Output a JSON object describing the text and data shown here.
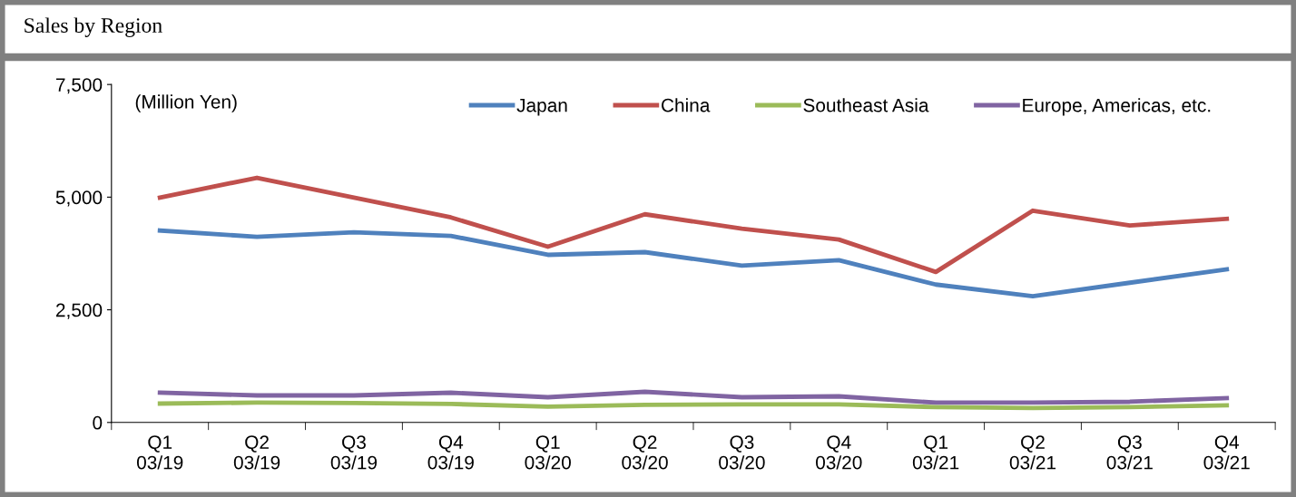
{
  "chart_data": {
    "type": "line",
    "title": "Sales by Region",
    "annotations": [
      "(Million Yen)"
    ],
    "categories": [
      "Q1\n03/19",
      "Q2\n03/19",
      "Q3\n03/19",
      "Q4\n03/19",
      "Q1\n03/20",
      "Q2\n03/20",
      "Q3\n03/20",
      "Q4\n03/20",
      "Q1\n03/21",
      "Q2\n03/21",
      "Q3\n03/21",
      "Q4\n03/21"
    ],
    "series": [
      {
        "name": "Japan",
        "color": "#4f81bd",
        "values": [
          4260,
          4120,
          4220,
          4140,
          3720,
          3780,
          3480,
          3600,
          3060,
          2800,
          3100,
          3400
        ]
      },
      {
        "name": "China",
        "color": "#c0504d",
        "values": [
          4990,
          5430,
          4990,
          4550,
          3900,
          4620,
          4300,
          4060,
          3340,
          4700,
          4370,
          4520
        ]
      },
      {
        "name": "Southeast Asia",
        "color": "#9bbb59",
        "values": [
          420,
          440,
          430,
          410,
          350,
          390,
          400,
          400,
          340,
          320,
          340,
          380
        ]
      },
      {
        "name": "Europe, Americas, etc.",
        "color": "#8064a2",
        "values": [
          660,
          600,
          600,
          660,
          560,
          680,
          560,
          580,
          440,
          440,
          460,
          540
        ]
      }
    ],
    "ylim": [
      0,
      7500
    ],
    "yticks": [
      {
        "value": 0,
        "label": "0"
      },
      {
        "value": 2500,
        "label": "2,500"
      },
      {
        "value": 5000,
        "label": "5,000"
      },
      {
        "value": 7500,
        "label": "7,500"
      }
    ],
    "grid": false,
    "legend": "top",
    "marker": "none",
    "line_style": "solid"
  }
}
